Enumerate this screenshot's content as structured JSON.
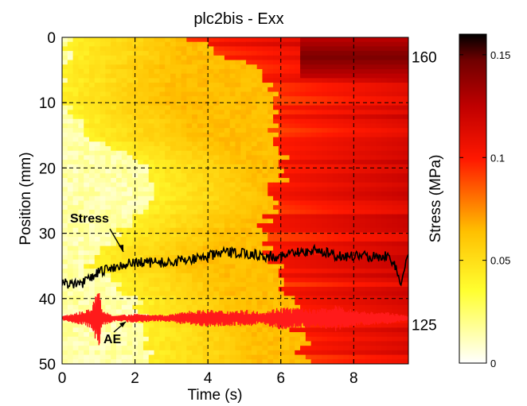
{
  "chart_data": {
    "type": "heatmap",
    "title": "plc2bis - Exx",
    "xlabel": "Time (s)",
    "ylabel": "Position (mm)",
    "y2label": "Stress (MPa)",
    "xlim": [
      0,
      9.5
    ],
    "ylim": [
      50,
      0
    ],
    "xticks": [
      "0",
      "2",
      "4",
      "6",
      "8"
    ],
    "yticks": [
      "0",
      "10",
      "20",
      "30",
      "40",
      "50"
    ],
    "grid": true,
    "colormap": "hot (reversed)",
    "colorbar": {
      "range": [
        0,
        0.16
      ],
      "ticks": [
        "0",
        "0.05",
        "0.1",
        "0.15"
      ]
    },
    "stress_axis": {
      "ticks": [
        "160",
        "125"
      ],
      "positions_mm": [
        3,
        44
      ]
    },
    "strain_front": {
      "position_mm": [
        0,
        5,
        10,
        15,
        20,
        25,
        30,
        35,
        40,
        45,
        50
      ],
      "plateau_onset_s": [
        3.5,
        5.4,
        6.0,
        5.7,
        6.1,
        5.8,
        5.5,
        5.8,
        6.3,
        6.5,
        6.6
      ],
      "yellow_onset_s": [
        0.2,
        0.0,
        0.0,
        0.8,
        2.3,
        2.5,
        1.5,
        0.8,
        2.0,
        2.3,
        2.4
      ]
    },
    "series": [
      {
        "name": "Stress",
        "color": "#000000",
        "x": [
          0,
          0.5,
          1.0,
          1.5,
          2.0,
          2.5,
          3.0,
          3.5,
          4.0,
          4.5,
          5.0,
          5.5,
          6.0,
          6.5,
          7.0,
          7.5,
          8.0,
          8.5,
          9.0,
          9.3,
          9.5
        ],
        "y_mm": [
          37.5,
          38.0,
          36.0,
          35.0,
          34.5,
          34.5,
          34.5,
          34.0,
          33.5,
          33.0,
          33.0,
          33.5,
          33.5,
          33.0,
          32.5,
          33.5,
          33.5,
          33.5,
          33.5,
          37.5,
          33.0
        ]
      },
      {
        "name": "AE",
        "color": "#ff1a1a",
        "baseline_mm": 43,
        "x": [
          0,
          0.8,
          1.0,
          1.1,
          1.5,
          2.0,
          2.5,
          3.0,
          3.5,
          4.0,
          4.5,
          5.0,
          5.5,
          6.0,
          6.5,
          7.0,
          7.5,
          8.0,
          8.5,
          9.0,
          9.5
        ],
        "amplitude_mm": [
          0.3,
          1.5,
          5.0,
          1.2,
          0.4,
          0.8,
          0.5,
          0.6,
          1.2,
          1.3,
          1.2,
          1.3,
          1.0,
          1.8,
          1.6,
          1.4,
          2.0,
          1.3,
          1.0,
          0.9,
          0.3
        ]
      }
    ],
    "annotations": [
      {
        "text": "Stress",
        "target": "Stress"
      },
      {
        "text": "AE",
        "target": "AE"
      }
    ]
  }
}
